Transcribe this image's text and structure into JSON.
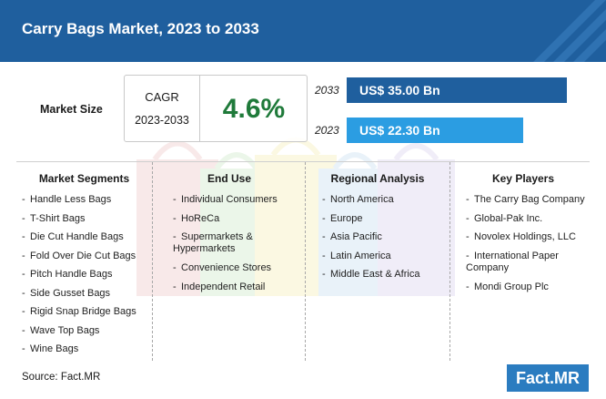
{
  "header": {
    "title": "Carry Bags Market, 2023 to 2033"
  },
  "market_size": {
    "label": "Market Size",
    "cagr_label": "CAGR",
    "cagr_years": "2023-2033",
    "cagr_value": "4.6%",
    "bars": [
      {
        "year": "2033",
        "value_label": "US$ 35.00 Bn",
        "value": 35.0,
        "color": "#1f5f9e"
      },
      {
        "year": "2023",
        "value_label": "US$ 22.30 Bn",
        "value": 22.3,
        "color": "#2b9de2"
      }
    ]
  },
  "columns": [
    {
      "heading": "Market Segments",
      "items": [
        "Handle Less Bags",
        "T-Shirt Bags",
        "Die Cut Handle Bags",
        "Fold Over Die Cut Bags",
        "Pitch Handle Bags",
        "Side Gusset Bags",
        "Rigid Snap Bridge Bags",
        "Wave Top Bags",
        "Wine Bags"
      ]
    },
    {
      "heading": "End Use",
      "items": [
        "Individual Consumers",
        "HoReCa",
        "Supermarkets & Hypermarkets",
        "Convenience Stores",
        "Independent Retail"
      ]
    },
    {
      "heading": "Regional Analysis",
      "items": [
        "North America",
        "Europe",
        "Asia Pacific",
        "Latin America",
        "Middle East & Africa"
      ]
    },
    {
      "heading": "Key Players",
      "items": [
        "The Carry Bag Company",
        "Global-Pak Inc.",
        "Novolex Holdings, LLC",
        "International Paper Company",
        "Mondi Group Plc"
      ]
    }
  ],
  "footer": {
    "source": "Source: Fact.MR",
    "logo": "Fact.MR"
  }
}
